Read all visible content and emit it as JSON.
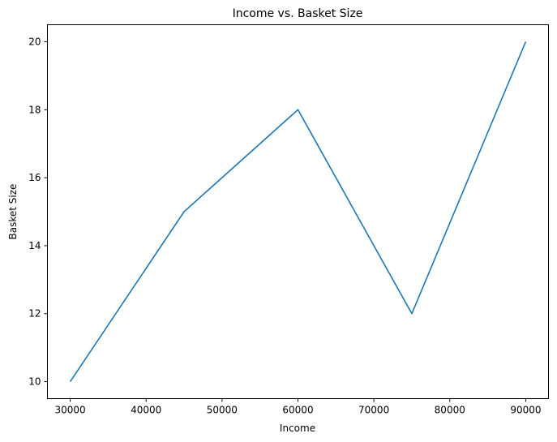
{
  "chart_data": {
    "type": "line",
    "title": "Income vs. Basket Size",
    "xlabel": "Income",
    "ylabel": "Basket Size",
    "x": [
      30000,
      45000,
      60000,
      75000,
      90000
    ],
    "series": [
      {
        "values": [
          10,
          15,
          18,
          12,
          20
        ],
        "color": "#1f77b4"
      }
    ],
    "xlim": [
      27000,
      93000
    ],
    "ylim": [
      9.5,
      20.5
    ],
    "xticks": [
      30000,
      40000,
      50000,
      60000,
      70000,
      80000,
      90000
    ],
    "yticks": [
      10,
      12,
      14,
      16,
      18,
      20
    ],
    "grid": false
  }
}
